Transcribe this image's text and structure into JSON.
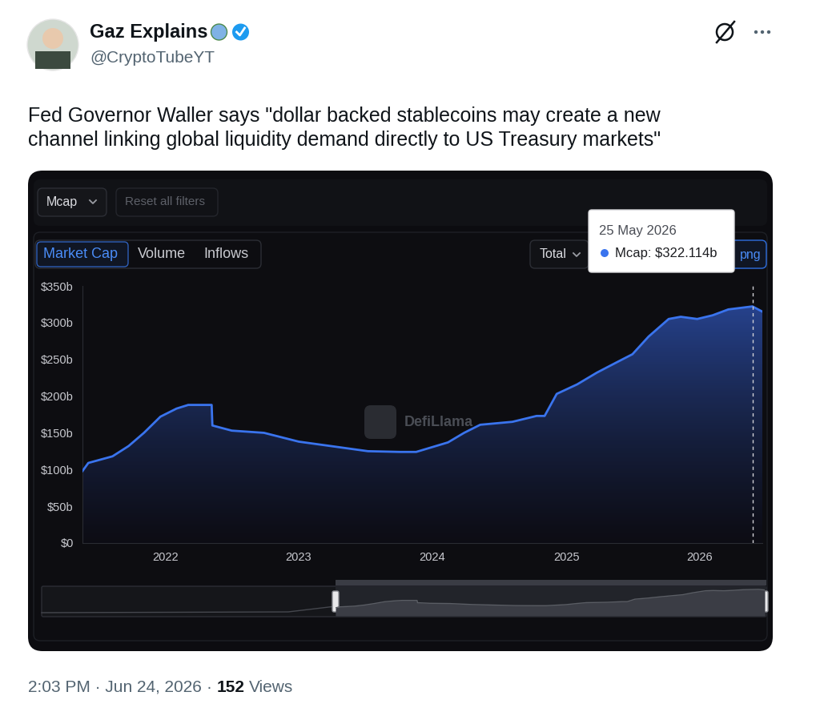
{
  "tweet": {
    "name": "Gaz Explains",
    "handle": "@CryptoTubeYT",
    "text": "Fed Governor Waller says \"dollar backed stablecoins may create a new\nchannel linking global liquidity demand directly to US Treasury markets\"",
    "timestamp": "2:03 PM · Jun 24, 2026",
    "separator": "·",
    "views": "152",
    "views_label": "Views"
  },
  "dashboard": {
    "metric_dropdown": "Mcap",
    "reset_button": "Reset all filters",
    "tabs": [
      "Market Cap",
      "Volume",
      "Inflows"
    ],
    "active_tab": "Market Cap",
    "total_dropdown": "Total",
    "download_button": "png",
    "watermark": "DefiLlama"
  },
  "chart_data": {
    "type": "area",
    "color": "#3a74ee",
    "x": [
      "2021-05-20",
      "2021-06-05",
      "2021-08-10",
      "2021-09-23",
      "2021-11-04",
      "2021-12-19",
      "2022-02-01",
      "2022-03-05",
      "2022-05-08",
      "2022-05-10",
      "2022-07-02",
      "2022-09-28",
      "2023-01-01",
      "2023-04-13",
      "2023-07-09",
      "2023-10-05",
      "2023-11-18",
      "2024-02-13",
      "2024-03-28",
      "2024-05-11",
      "2024-08-07",
      "2024-10-12",
      "2024-11-03",
      "2024-12-06",
      "2025-01-31",
      "2025-03-26",
      "2025-05-19",
      "2025-07-01",
      "2025-08-14",
      "2025-10-08",
      "2025-11-10",
      "2025-12-25",
      "2026-02-05",
      "2026-03-20",
      "2026-05-25",
      "2026-06-21"
    ],
    "values": [
      98,
      109,
      118,
      132,
      150,
      172,
      183,
      188,
      188,
      160,
      153,
      150,
      138,
      131,
      125,
      124,
      124,
      137,
      150,
      161,
      165,
      173,
      173,
      203,
      216,
      232,
      246,
      257,
      281,
      305,
      308,
      305,
      310,
      318,
      322.114,
      315
    ],
    "xlim": [
      "2021-05-20",
      "2026-06-21"
    ],
    "xticks": [
      {
        "value": "2022-01-01",
        "label": "2022"
      },
      {
        "value": "2023-01-01",
        "label": "2023"
      },
      {
        "value": "2024-01-01",
        "label": "2024"
      },
      {
        "value": "2025-01-01",
        "label": "2025"
      },
      {
        "value": "2026-01-01",
        "label": "2026"
      }
    ],
    "ylim": [
      0,
      350
    ],
    "yticks": [
      {
        "value": 0,
        "label": "$0"
      },
      {
        "value": 50,
        "label": "$50b"
      },
      {
        "value": 100,
        "label": "$100b"
      },
      {
        "value": 150,
        "label": "$150b"
      },
      {
        "value": 200,
        "label": "$200b"
      },
      {
        "value": 250,
        "label": "$250b"
      },
      {
        "value": 300,
        "label": "$300b"
      },
      {
        "value": 350,
        "label": "$350b"
      }
    ],
    "grid": false,
    "annotations": [
      {
        "x": "2026-05-25",
        "date_label": "25 May 2026",
        "text": "Mcap: $322.114b"
      }
    ]
  }
}
